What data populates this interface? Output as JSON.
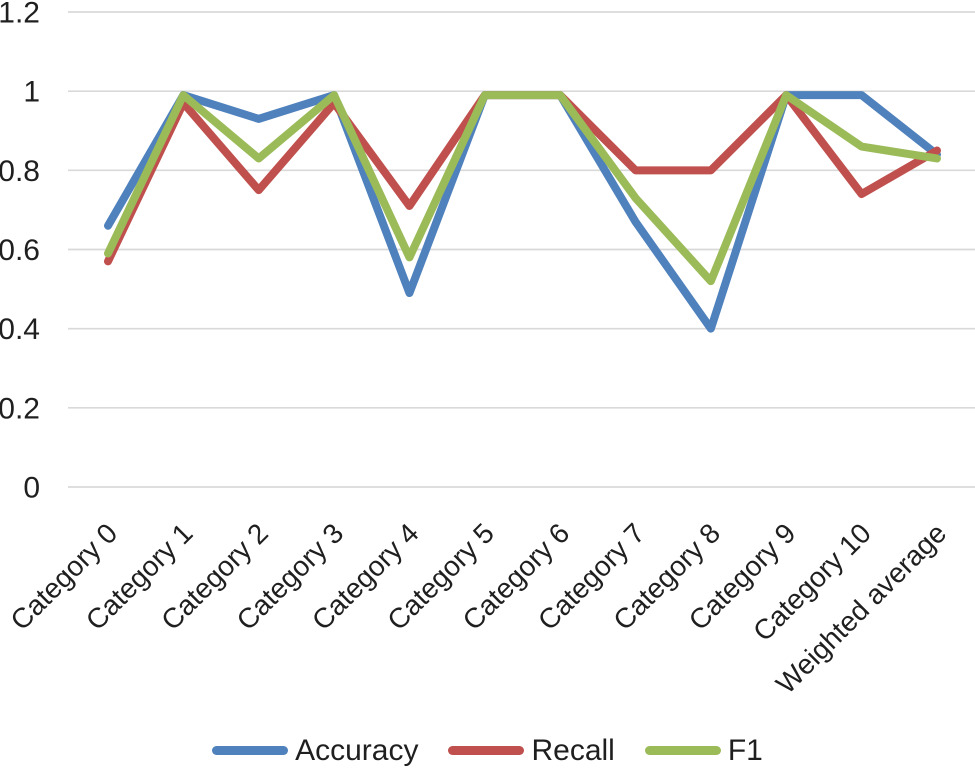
{
  "chart_data": {
    "type": "line",
    "title": "",
    "xlabel": "",
    "ylabel": "",
    "grid": true,
    "legend_position": "bottom",
    "ylim": [
      0,
      1.2
    ],
    "ytick_values": [
      0,
      0.2,
      0.4,
      0.6,
      0.8,
      1,
      1.2
    ],
    "ytick_labels": [
      "0",
      "0.2",
      "0.4",
      "0.6",
      "0.8",
      "1",
      "1.2"
    ],
    "categories": [
      "Category 0",
      "Category 1",
      "Category 2",
      "Category 3",
      "Category 4",
      "Category 5",
      "Category 6",
      "Category 7",
      "Category 8",
      "Category 9",
      "Category 10",
      "Weighted average"
    ],
    "series": [
      {
        "name": "Accuracy",
        "color": "#4F81BD",
        "values": [
          0.66,
          0.99,
          0.93,
          0.99,
          0.49,
          0.99,
          0.99,
          0.67,
          0.4,
          0.99,
          0.99,
          0.84
        ]
      },
      {
        "name": "Recall",
        "color": "#C0504D",
        "values": [
          0.57,
          0.97,
          0.75,
          0.97,
          0.71,
          0.99,
          0.99,
          0.8,
          0.8,
          0.99,
          0.74,
          0.85
        ]
      },
      {
        "name": "F1",
        "color": "#9BBB59",
        "values": [
          0.59,
          0.99,
          0.83,
          0.99,
          0.58,
          0.99,
          0.99,
          0.73,
          0.52,
          0.99,
          0.86,
          0.83
        ]
      }
    ]
  },
  "colors": {
    "background": "#FFFFFF",
    "gridline": "#D9D9D9",
    "text": "#1F1F1F"
  }
}
